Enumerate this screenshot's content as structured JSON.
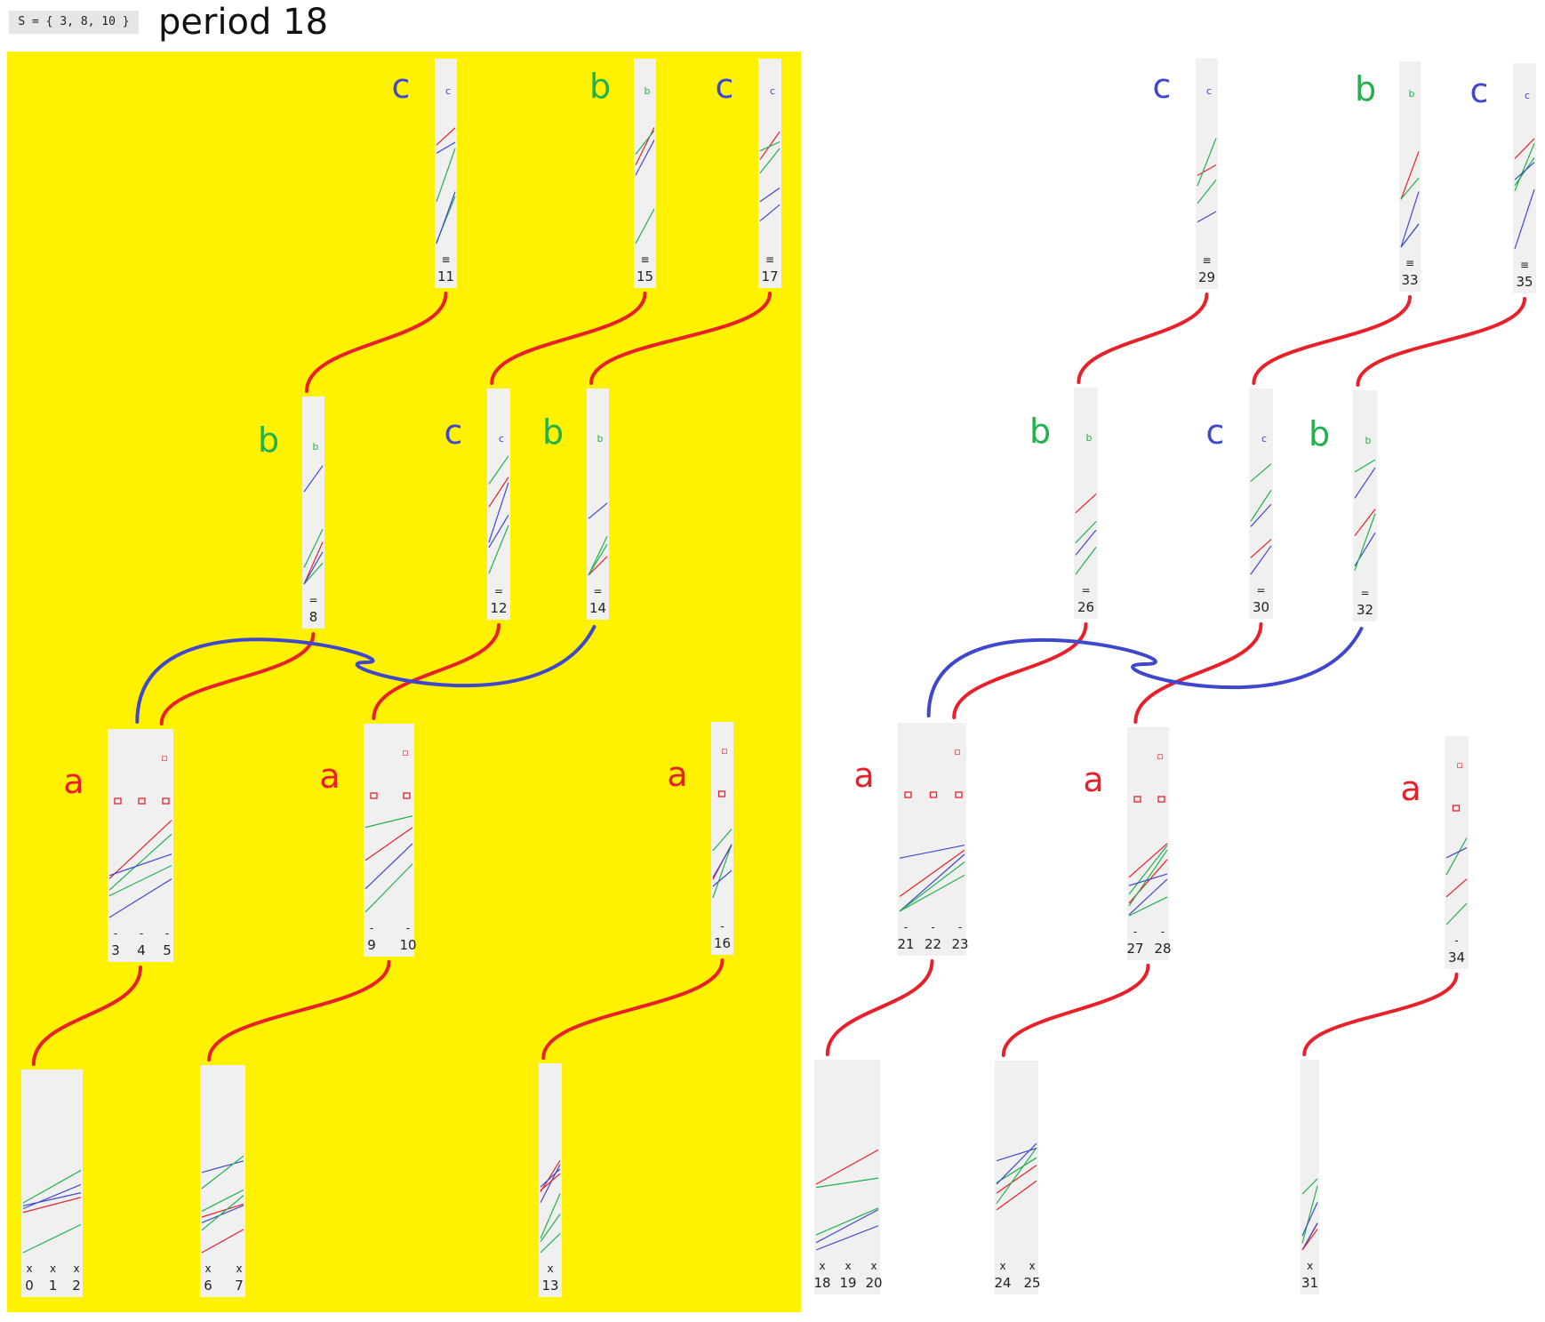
{
  "header": {
    "set_label": "S = { 3, 8, 10 }",
    "period_label": "period 18"
  },
  "colors": {
    "highlight_panel": "#fff200",
    "a": "#e8202a",
    "b": "#22b14c",
    "c": "#3f48cc",
    "column_bg": "#f0f0f0"
  },
  "columns": [
    {
      "id": "L-a1",
      "tier": "a",
      "letter": "",
      "labels": [
        "0",
        "1",
        "2"
      ],
      "marks": [
        "x",
        "x",
        "x"
      ]
    },
    {
      "id": "L-a2",
      "tier": "a",
      "letter": "",
      "labels": [
        "6",
        "7"
      ],
      "marks": [
        "x",
        "x"
      ]
    },
    {
      "id": "L-a3",
      "tier": "a",
      "letter": "",
      "labels": [
        "13"
      ],
      "marks": [
        "x"
      ]
    },
    {
      "id": "L-b1",
      "tier": "b",
      "letter": "a",
      "labels": [
        "3",
        "4",
        "5"
      ],
      "marks": [
        "-",
        "-",
        "-"
      ]
    },
    {
      "id": "L-b2",
      "tier": "b",
      "letter": "a",
      "labels": [
        "9",
        "10"
      ],
      "marks": [
        "-",
        "-"
      ]
    },
    {
      "id": "L-b3",
      "tier": "b",
      "letter": "a",
      "labels": [
        "16"
      ],
      "marks": [
        "-"
      ]
    },
    {
      "id": "L-c1",
      "tier": "c",
      "letter": "b",
      "labels": [
        "8"
      ],
      "marks": [
        "="
      ]
    },
    {
      "id": "L-c2",
      "tier": "c",
      "letter": "c",
      "labels": [
        "12"
      ],
      "marks": [
        "="
      ]
    },
    {
      "id": "L-c3",
      "tier": "c",
      "letter": "b",
      "labels": [
        "14"
      ],
      "marks": [
        "="
      ]
    },
    {
      "id": "L-d1",
      "tier": "d",
      "letter": "c",
      "labels": [
        "11"
      ],
      "marks": [
        "≡"
      ]
    },
    {
      "id": "L-d2",
      "tier": "d",
      "letter": "b",
      "labels": [
        "15"
      ],
      "marks": [
        "≡"
      ]
    },
    {
      "id": "L-d3",
      "tier": "d",
      "letter": "c",
      "labels": [
        "17"
      ],
      "marks": [
        "≡"
      ]
    },
    {
      "id": "R-a1",
      "tier": "a",
      "letter": "",
      "labels": [
        "18",
        "19",
        "20"
      ],
      "marks": [
        "x",
        "x",
        "x"
      ]
    },
    {
      "id": "R-a2",
      "tier": "a",
      "letter": "",
      "labels": [
        "24",
        "25"
      ],
      "marks": [
        "x",
        "x"
      ]
    },
    {
      "id": "R-a3",
      "tier": "a",
      "letter": "",
      "labels": [
        "31"
      ],
      "marks": [
        "x"
      ]
    },
    {
      "id": "R-b1",
      "tier": "b",
      "letter": "a",
      "labels": [
        "21",
        "22",
        "23"
      ],
      "marks": [
        "-",
        "-",
        "-"
      ]
    },
    {
      "id": "R-b2",
      "tier": "b",
      "letter": "a",
      "labels": [
        "27",
        "28"
      ],
      "marks": [
        "-",
        "-"
      ]
    },
    {
      "id": "R-b3",
      "tier": "b",
      "letter": "a",
      "labels": [
        "34"
      ],
      "marks": [
        "-"
      ]
    },
    {
      "id": "R-c1",
      "tier": "c",
      "letter": "b",
      "labels": [
        "26"
      ],
      "marks": [
        "="
      ]
    },
    {
      "id": "R-c2",
      "tier": "c",
      "letter": "c",
      "labels": [
        "30"
      ],
      "marks": [
        "="
      ]
    },
    {
      "id": "R-c3",
      "tier": "c",
      "letter": "b",
      "labels": [
        "32"
      ],
      "marks": [
        "="
      ]
    },
    {
      "id": "R-d1",
      "tier": "d",
      "letter": "c",
      "labels": [
        "29"
      ],
      "marks": [
        "≡"
      ]
    },
    {
      "id": "R-d2",
      "tier": "d",
      "letter": "b",
      "labels": [
        "33"
      ],
      "marks": [
        "≡"
      ]
    },
    {
      "id": "R-d3",
      "tier": "d",
      "letter": "c",
      "labels": [
        "35"
      ],
      "marks": [
        "≡"
      ]
    }
  ]
}
